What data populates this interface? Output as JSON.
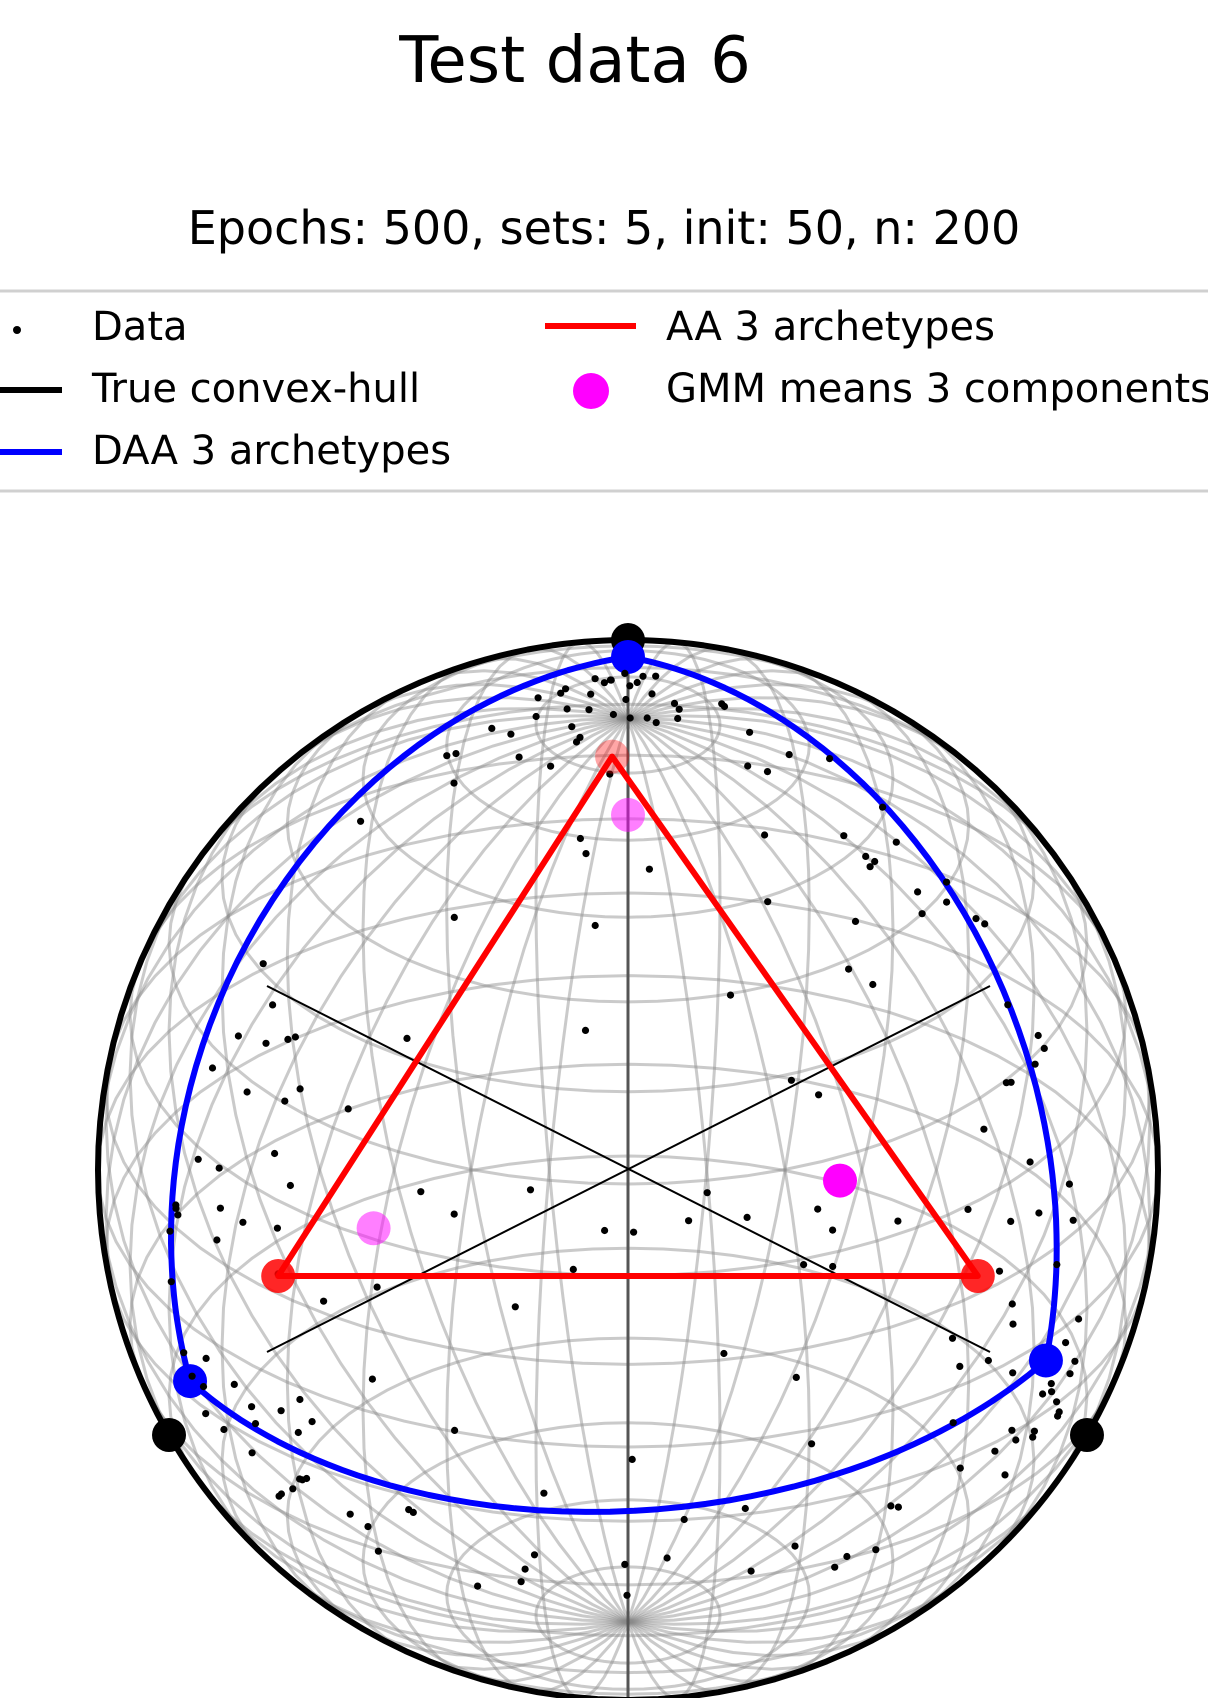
{
  "chart_data": {
    "type": "scatter",
    "title": "Test data 6",
    "subtitle": "Epochs: 500, sets: 5, init: 50, n: 200",
    "legend": {
      "placement": "top",
      "entries": [
        {
          "label": "Data",
          "marker": "point",
          "color": "#000000"
        },
        {
          "label": "True convex-hull",
          "marker": "line",
          "color": "#000000"
        },
        {
          "label": "DAA 3 archetypes",
          "marker": "line",
          "color": "#0000ff"
        },
        {
          "label": "AA 3 archetypes",
          "marker": "line",
          "color": "#ff0000"
        },
        {
          "label": "GMM means 3 components",
          "marker": "circle",
          "color": "#ff00ff"
        }
      ]
    },
    "true_hull_vertices": [
      [
        0,
        1,
        0
      ],
      [
        -0.866,
        -0.5,
        0
      ],
      [
        0.866,
        -0.5,
        0
      ]
    ],
    "daa_archetypes": [
      [
        0.0,
        0.965,
        0.25
      ],
      [
        -0.83,
        -0.4,
        0.4
      ],
      [
        0.79,
        -0.36,
        0.5
      ]
    ],
    "aa_archetypes": [
      [
        -0.03,
        0.78,
        0.3
      ],
      [
        -0.66,
        -0.2,
        0.3
      ],
      [
        0.66,
        -0.2,
        0.3
      ]
    ],
    "gmm_means": [
      [
        0.0,
        0.67,
        0.3
      ],
      [
        -0.48,
        -0.11,
        0.3
      ],
      [
        0.4,
        -0.02,
        0.3
      ]
    ],
    "n_points": 200,
    "data_seed": 6
  }
}
